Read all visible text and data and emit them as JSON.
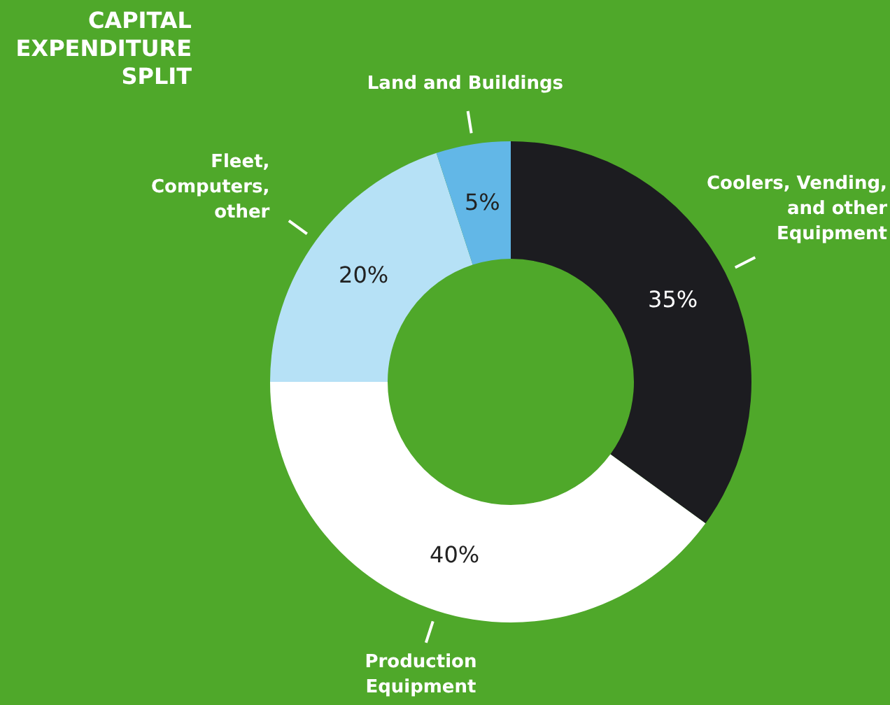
{
  "chart_data": {
    "type": "donut",
    "title": "CAPITAL\nEXPENDITURE\nSPLIT",
    "categories": [
      "Coolers, Vending,\nand other\nEquipment",
      "Production\nEquipment",
      "Fleet,\nComputers,\nother",
      "Land and Buildings"
    ],
    "values": [
      35,
      40,
      20,
      5
    ],
    "colors": [
      "#1c1c20",
      "#ffffff",
      "#b6e1f6",
      "#62b7e7"
    ],
    "value_labels": [
      "35%",
      "40%",
      "20%",
      "5%"
    ]
  }
}
